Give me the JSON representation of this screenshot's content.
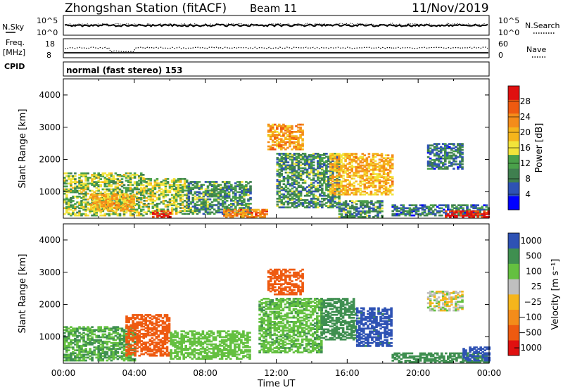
{
  "header": {
    "station": "Zhongshan Station (fitACF)",
    "beam": "Beam 11",
    "date": "11/Nov/2019",
    "mode": "normal (fast stereo) 153"
  },
  "panels": {
    "nsky": {
      "left_label": "N.Sky",
      "right_label": "N.Search",
      "left_ticks": [
        "10^5",
        "10^0"
      ],
      "right_ticks": [
        "10^5",
        "10^0"
      ]
    },
    "freq": {
      "left_label_1": "Freq.",
      "left_label_2": "[MHz]",
      "cpid_label": "CPID",
      "right_label": "Nave",
      "left_ticks": [
        "18",
        "8"
      ],
      "right_ticks": [
        "60",
        "0"
      ]
    }
  },
  "colors": {
    "power": [
      "#0000ff",
      "#2e52b4",
      "#3f7f4f",
      "#4aa04a",
      "#f2e43a",
      "#f5b51c",
      "#f48c1a",
      "#ee5a10",
      "#e01010"
    ],
    "velocity": [
      "#e01010",
      "#ee5a10",
      "#f48c1a",
      "#f5b51c",
      "#bfbfbf",
      "#64c040",
      "#3f8f50",
      "#2e52b4"
    ]
  },
  "chart_data": [
    {
      "type": "heatmap",
      "name": "Power",
      "xlabel": "Time UT",
      "ylabel": "Slant Range [km]",
      "xlim_hours": [
        0,
        24
      ],
      "ylim_km": [
        180,
        4500
      ],
      "x_ticks": [
        "00:00",
        "04:00",
        "08:00",
        "12:00",
        "16:00",
        "20:00",
        "00:00"
      ],
      "y_ticks": [
        1000,
        2000,
        3000,
        4000
      ],
      "colorbar": {
        "label": "Power [dB]",
        "ticks": [
          4,
          8,
          12,
          16,
          20,
          24,
          28
        ],
        "range": [
          0,
          32
        ]
      },
      "regions": [
        {
          "t0": 0.0,
          "t1": 4.5,
          "r0": 250,
          "r1": 1600,
          "v": 14
        },
        {
          "t0": 1.5,
          "t1": 4.0,
          "r0": 400,
          "r1": 900,
          "v": 20
        },
        {
          "t0": 4.5,
          "t1": 7.0,
          "r0": 300,
          "r1": 1400,
          "v": 14
        },
        {
          "t0": 5.0,
          "t1": 6.0,
          "r0": 200,
          "r1": 400,
          "v": 30
        },
        {
          "t0": 7.0,
          "t1": 10.5,
          "r0": 300,
          "r1": 1300,
          "v": 10
        },
        {
          "t0": 9.0,
          "t1": 11.5,
          "r0": 200,
          "r1": 450,
          "v": 24
        },
        {
          "t0": 11.5,
          "t1": 13.5,
          "r0": 2300,
          "r1": 3100,
          "v": 22
        },
        {
          "t0": 12.0,
          "t1": 15.5,
          "r0": 500,
          "r1": 2200,
          "v": 10
        },
        {
          "t0": 15.0,
          "t1": 18.5,
          "r0": 900,
          "r1": 2200,
          "v": 20
        },
        {
          "t0": 15.5,
          "t1": 18.0,
          "r0": 200,
          "r1": 700,
          "v": 10
        },
        {
          "t0": 18.5,
          "t1": 24.0,
          "r0": 250,
          "r1": 600,
          "v": 8
        },
        {
          "t0": 21.5,
          "t1": 24.0,
          "r0": 200,
          "r1": 420,
          "v": 30
        },
        {
          "t0": 20.5,
          "t1": 22.5,
          "r0": 1700,
          "r1": 2500,
          "v": 8
        }
      ]
    },
    {
      "type": "heatmap",
      "name": "Velocity",
      "xlabel": "Time UT",
      "ylabel": "Slant Range [km]",
      "xlim_hours": [
        0,
        24
      ],
      "ylim_km": [
        180,
        4500
      ],
      "x_ticks": [
        "00:00",
        "04:00",
        "08:00",
        "12:00",
        "16:00",
        "20:00",
        "00:00"
      ],
      "y_ticks": [
        1000,
        2000,
        3000,
        4000
      ],
      "colorbar": {
        "label": "Velocity [m s⁻¹]",
        "ticks": [
          "1000",
          "500",
          "100",
          "25",
          "−25",
          "−100",
          "−500",
          "−1000"
        ]
      },
      "regions": [
        {
          "t0": 0.0,
          "t1": 4.0,
          "r0": 250,
          "r1": 1300,
          "v": 100
        },
        {
          "t0": 3.5,
          "t1": 6.0,
          "r0": 400,
          "r1": 1700,
          "v": -300
        },
        {
          "t0": 6.0,
          "t1": 10.5,
          "r0": 300,
          "r1": 1200,
          "v": 60
        },
        {
          "t0": 11.5,
          "t1": 13.5,
          "r0": 2300,
          "r1": 3100,
          "v": -300
        },
        {
          "t0": 11.0,
          "t1": 14.5,
          "r0": 500,
          "r1": 2200,
          "v": 80
        },
        {
          "t0": 14.5,
          "t1": 16.5,
          "r0": 900,
          "r1": 2200,
          "v": 200
        },
        {
          "t0": 16.5,
          "t1": 18.5,
          "r0": 700,
          "r1": 1900,
          "v": 800
        },
        {
          "t0": 18.5,
          "t1": 24.0,
          "r0": 200,
          "r1": 500,
          "v": 200
        },
        {
          "t0": 22.5,
          "t1": 24.0,
          "r0": 250,
          "r1": 700,
          "v": 800
        },
        {
          "t0": 20.5,
          "t1": 22.5,
          "r0": 1800,
          "r1": 2400,
          "v": 10
        }
      ]
    }
  ]
}
